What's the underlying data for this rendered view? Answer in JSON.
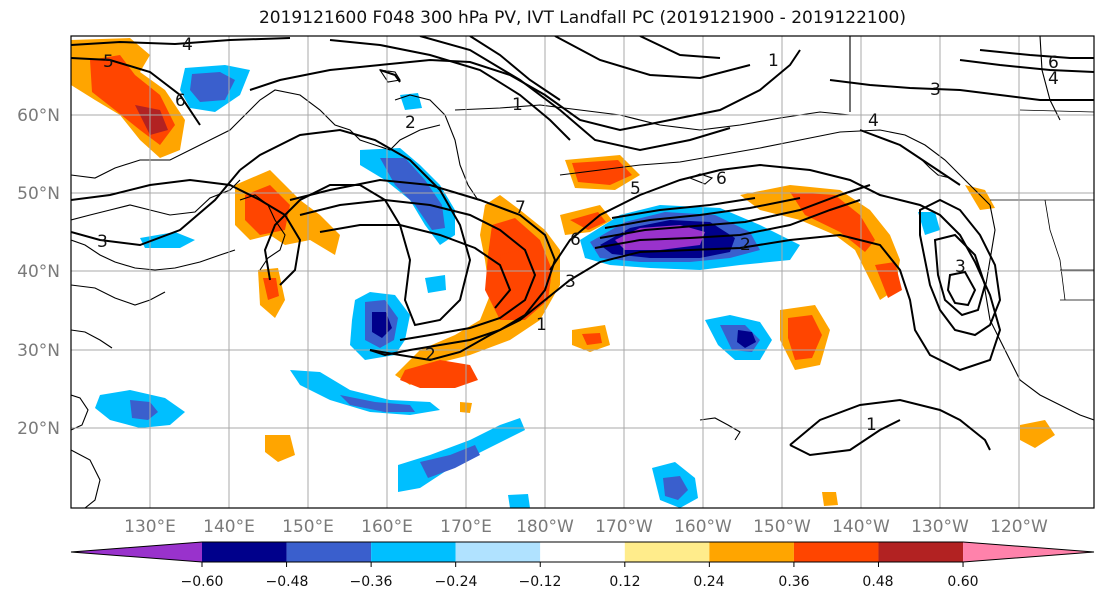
{
  "title": "2019121600 F048 300 hPa PV, IVT Landfall PC (2019121900 - 2019122100)",
  "lat_ticks": [
    "60°N",
    "50°N",
    "40°N",
    "30°N",
    "20°N"
  ],
  "lon_ticks": [
    "130°E",
    "140°E",
    "150°E",
    "160°E",
    "170°E",
    "180°W",
    "170°W",
    "160°W",
    "150°W",
    "140°W",
    "130°W",
    "120°W"
  ],
  "colorbar": {
    "tick_labels": [
      "−0.60",
      "−0.48",
      "−0.36",
      "−0.24",
      "−0.12",
      "0.12",
      "0.24",
      "0.36",
      "0.48",
      "0.60"
    ],
    "colors": [
      "#9932cc",
      "#00008b",
      "#3a5fcd",
      "#00bfff",
      "#b0e2ff",
      "#ffffff",
      "#ffec8b",
      "#ffa500",
      "#ff4500",
      "#b22222",
      "#ff82ab"
    ]
  },
  "contour_labels": [
    "4",
    "5",
    "6",
    "3",
    "1",
    "2",
    "6",
    "5",
    "6",
    "7",
    "2",
    "3",
    "1",
    "2",
    "6",
    "3",
    "4",
    "1",
    "3",
    "4",
    "1"
  ]
}
